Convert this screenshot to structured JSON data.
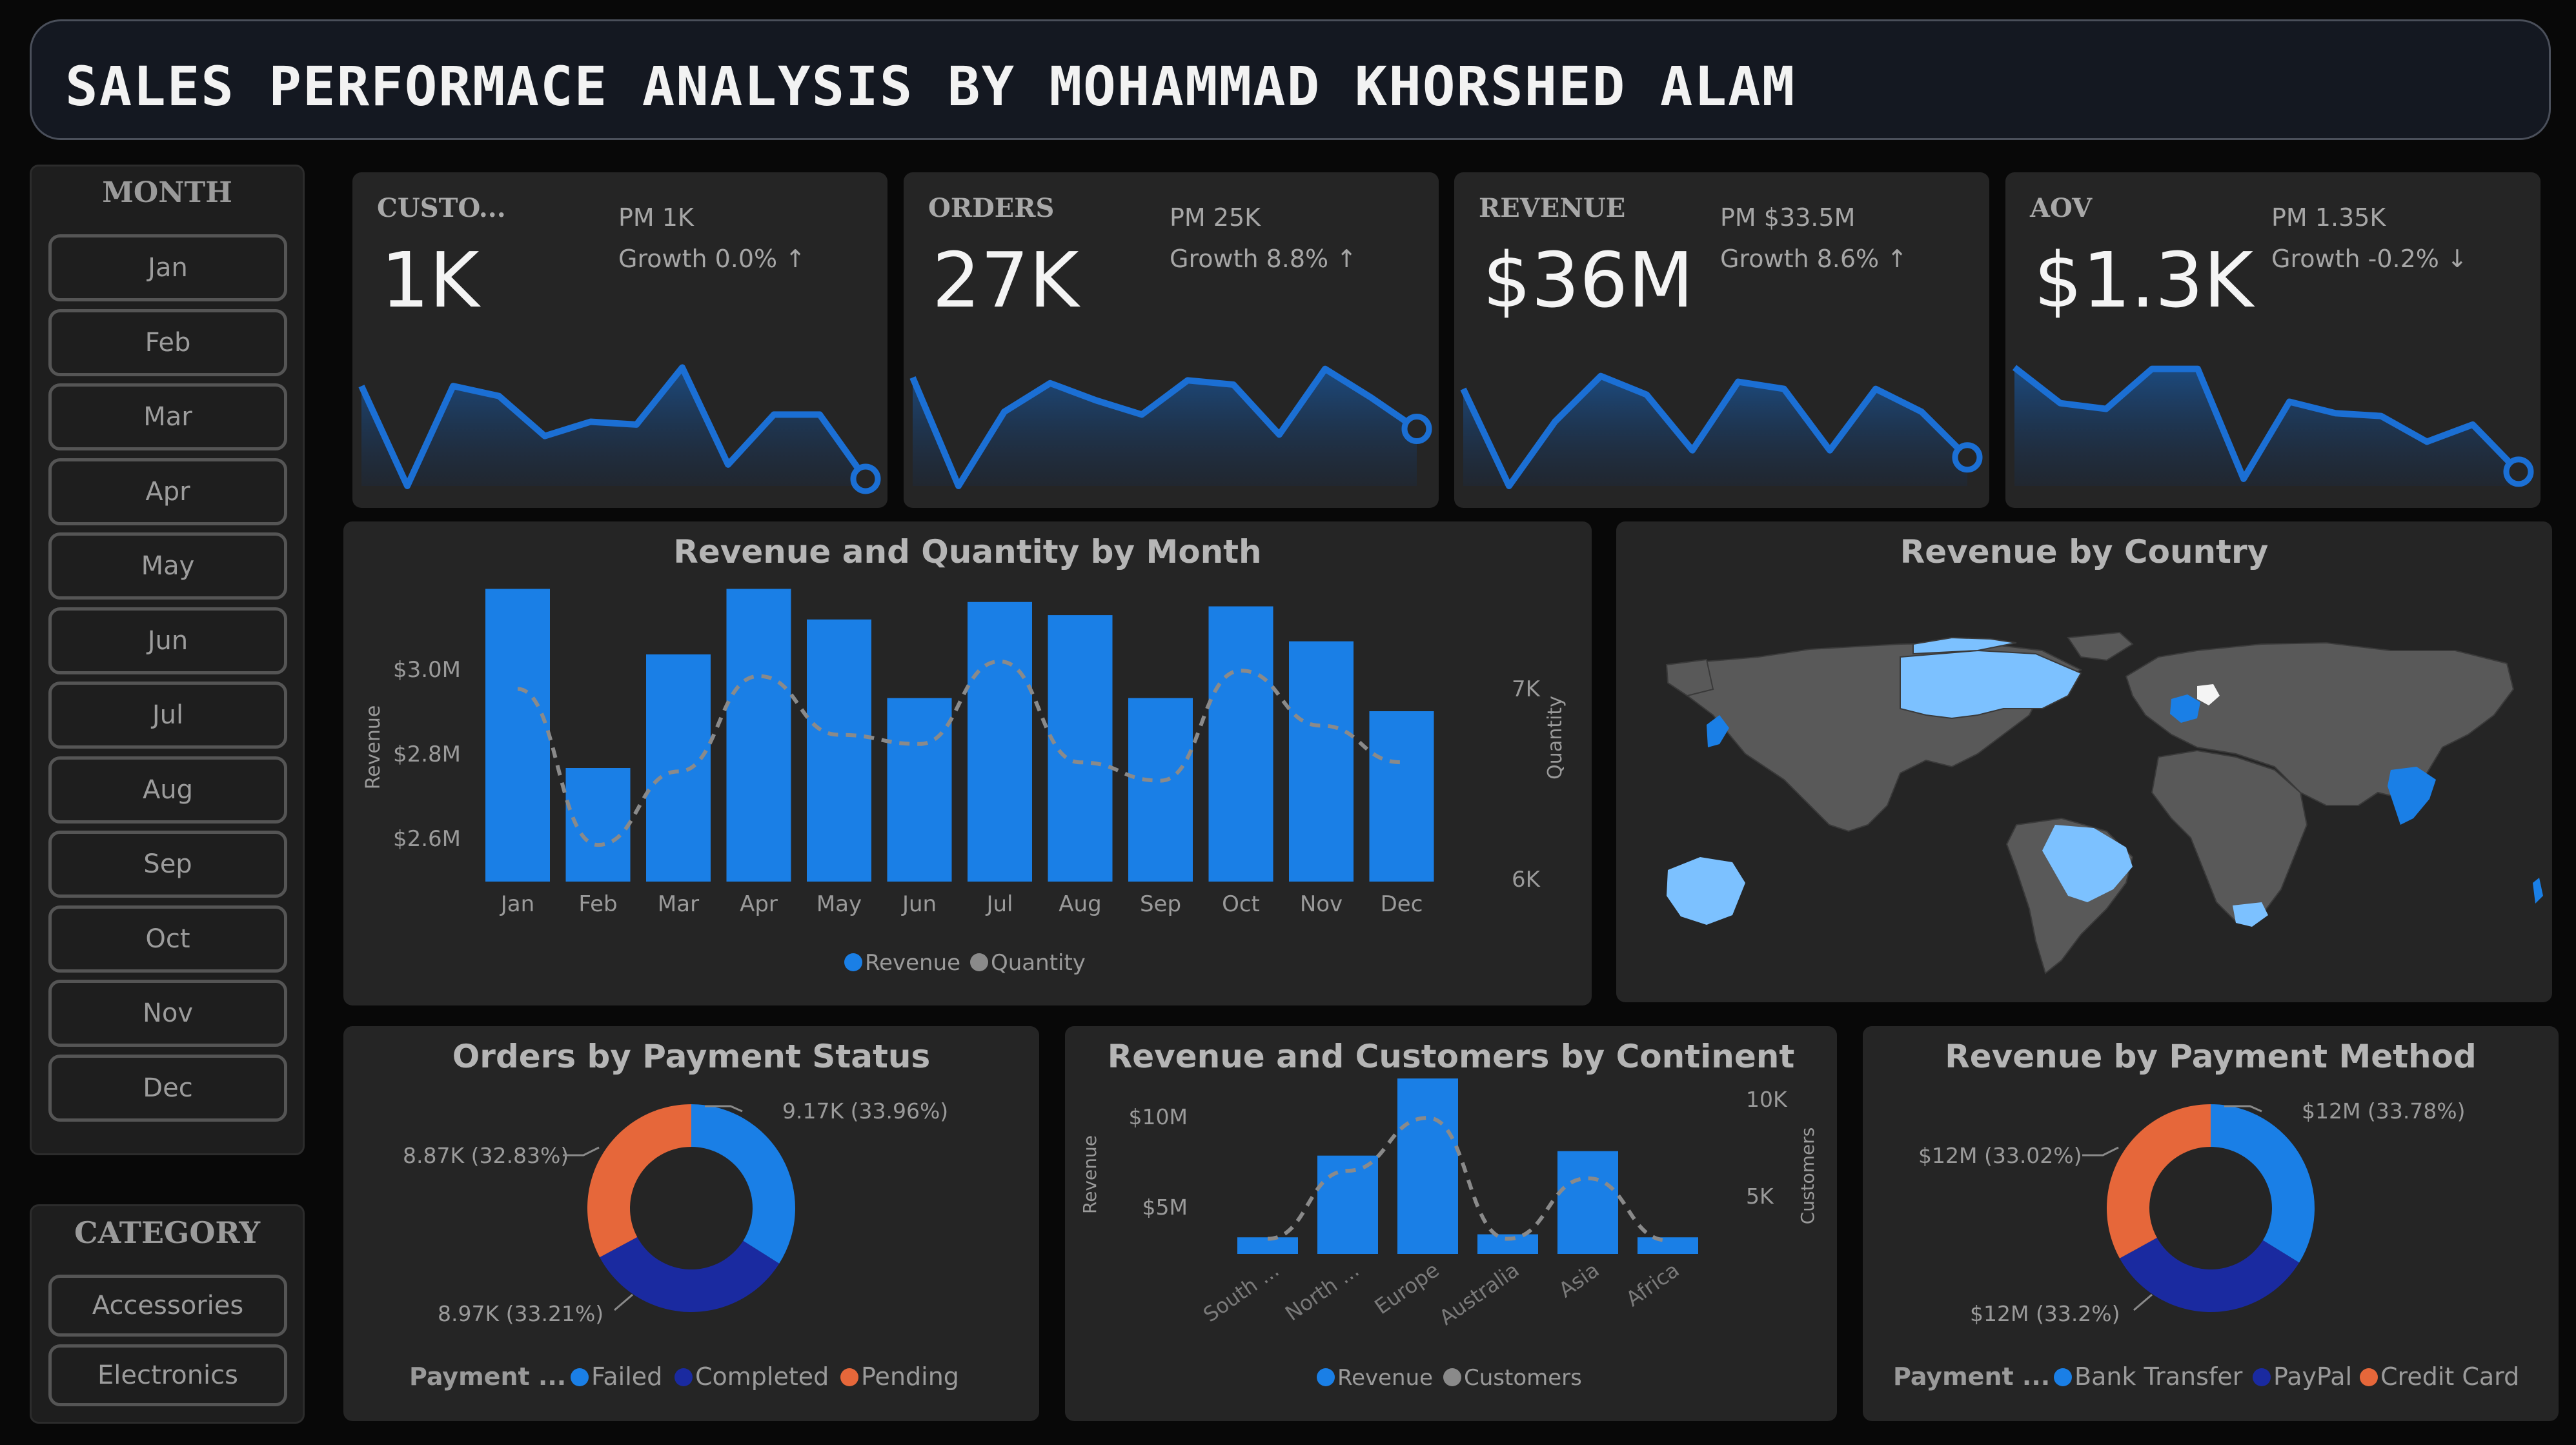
{
  "header": {
    "title": "SALES PERFORMACE ANALYSIS BY MOHAMMAD KHORSHED ALAM"
  },
  "month_slicer": {
    "heading": "MONTH",
    "items": [
      "Jan",
      "Feb",
      "Mar",
      "Apr",
      "May",
      "Jun",
      "Jul",
      "Aug",
      "Sep",
      "Oct",
      "Nov",
      "Dec"
    ]
  },
  "category_slicer": {
    "heading": "CATEGORY",
    "items": [
      "Accessories",
      "Electronics"
    ]
  },
  "kpis": [
    {
      "label": "CUSTO...",
      "value": "1K",
      "pm": "PM 1K",
      "growth": "Growth 0.0%",
      "arrow": "↑",
      "trend": [
        7,
        0,
        7,
        6.3,
        3.5,
        4.5,
        4.3,
        8.3,
        1.5,
        5,
        5,
        0.5
      ]
    },
    {
      "label": "ORDERS",
      "value": "27K",
      "pm": "PM 25K",
      "growth": "Growth 8.8%",
      "arrow": "↑",
      "trend": [
        7.6,
        0,
        5.2,
        7.2,
        6,
        5,
        7.4,
        7.1,
        3.6,
        8.2,
        6.2,
        4
      ]
    },
    {
      "label": "REVENUE",
      "value": "$36M",
      "pm": "PM $33.5M",
      "growth": "Growth 8.6%",
      "arrow": "↑",
      "trend": [
        6.8,
        0,
        4.5,
        7.7,
        6.4,
        2.5,
        7.3,
        6.8,
        2.5,
        6.8,
        5.2,
        2
      ]
    },
    {
      "label": "AOV",
      "value": "$1.3K",
      "pm": "PM 1.35K",
      "growth": "Growth -0.2%",
      "arrow": "↓",
      "trend": [
        8.3,
        5.8,
        5.4,
        8.2,
        8.2,
        0.5,
        5.9,
        5.1,
        4.9,
        3.1,
        4.3,
        1
      ]
    }
  ],
  "colors": {
    "accent": "#1a7fe6",
    "line": "#1b6fd4",
    "dark_blue": "#1a2aa0",
    "orange": "#e6673a",
    "light_blue": "#7cc1ff",
    "map_land": "#595959"
  },
  "revenue_quantity_by_month": {
    "title": "Revenue and Quantity by Month",
    "y_label": "Revenue",
    "y2_label": "Quantity",
    "legend": [
      "Revenue",
      "Quantity"
    ],
    "y_ticks": [
      "$3.0M",
      "$2.8M",
      "$2.6M"
    ],
    "y2_ticks": [
      "7K",
      "6K"
    ]
  },
  "revenue_by_country": {
    "title": "Revenue by Country"
  },
  "orders_by_payment_status": {
    "title": "Orders by Payment Status",
    "legend_title": "Payment ...",
    "legend": [
      "Failed",
      "Completed",
      "Pending"
    ],
    "labels": [
      "9.17K (33.96%)",
      "8.97K (33.21%)",
      "8.87K (32.83%)"
    ]
  },
  "revenue_customers_by_continent": {
    "title": "Revenue and Customers by Continent",
    "y_label": "Revenue",
    "y2_label": "Customers",
    "legend": [
      "Revenue",
      "Customers"
    ],
    "y_ticks": [
      "$10M",
      "$5M"
    ],
    "y2_ticks": [
      "10K",
      "5K"
    ]
  },
  "revenue_by_payment_method": {
    "title": "Revenue by Payment Method",
    "legend_title": "Payment ...",
    "legend": [
      "Bank Transfer",
      "PayPal",
      "Credit Card"
    ],
    "labels": [
      "$12M (33.78%)",
      "$12M (33.2%)",
      "$12M (33.02%)"
    ]
  },
  "chart_data": [
    {
      "type": "bar",
      "title": "Revenue and Quantity by Month",
      "categories": [
        "Jan",
        "Feb",
        "Mar",
        "Apr",
        "May",
        "Jun",
        "Jul",
        "Aug",
        "Sep",
        "Oct",
        "Nov",
        "Dec"
      ],
      "ylim": [
        2.45,
        3.1
      ],
      "y2lim": [
        5.9,
        7.3
      ],
      "series": [
        {
          "name": "Revenue",
          "axis": "left",
          "unit": "$M",
          "values": [
            3.12,
            2.71,
            2.97,
            3.12,
            3.05,
            2.87,
            3.09,
            3.06,
            2.87,
            3.08,
            3.0,
            2.84
          ]
        },
        {
          "name": "Quantity",
          "axis": "right",
          "unit": "K",
          "style": "dashed-line",
          "values": [
            6.95,
            6.1,
            6.5,
            7.02,
            6.7,
            6.65,
            7.1,
            6.55,
            6.45,
            7.05,
            6.75,
            6.55
          ]
        }
      ]
    },
    {
      "type": "pie",
      "title": "Orders by Payment Status",
      "categories": [
        "Failed",
        "Completed",
        "Pending"
      ],
      "values": [
        9170,
        8970,
        8870
      ]
    },
    {
      "type": "bar",
      "title": "Revenue and Customers by Continent",
      "categories": [
        "South ...",
        "North ...",
        "Europe",
        "Australia",
        "Asia",
        "Africa"
      ],
      "ylim": [
        0,
        12.5
      ],
      "y2lim": [
        0,
        12.5
      ],
      "series": [
        {
          "name": "Revenue",
          "axis": "left",
          "unit": "$M",
          "values": [
            1.1,
            6.5,
            11.6,
            1.3,
            6.8,
            1.1
          ]
        },
        {
          "name": "Customers",
          "axis": "right",
          "unit": "K",
          "style": "dashed-line",
          "values": [
            1.0,
            5.5,
            9.0,
            1.0,
            5.0,
            0.9
          ]
        }
      ]
    },
    {
      "type": "pie",
      "title": "Revenue by Payment Method",
      "categories": [
        "Bank Transfer",
        "PayPal",
        "Credit Card"
      ],
      "values": [
        33.78,
        33.2,
        33.02
      ]
    }
  ]
}
